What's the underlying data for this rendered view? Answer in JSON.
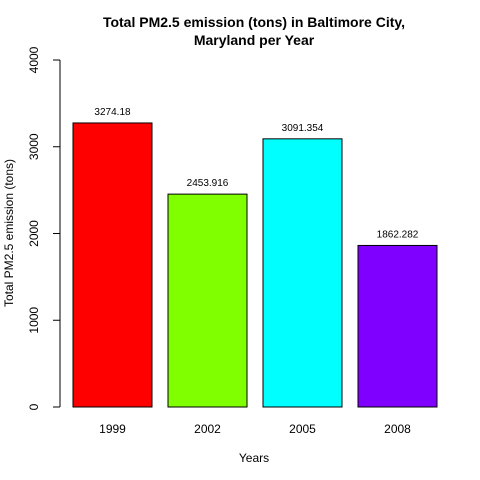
{
  "chart_data": {
    "type": "bar",
    "title_line1": "Total PM2.5 emission (tons) in Baltimore City,",
    "title_line2": "Maryland per Year",
    "xlabel": "Years",
    "ylabel": "Total PM2.5 emission (tons)",
    "categories": [
      "1999",
      "2002",
      "2005",
      "2008"
    ],
    "values": [
      3274.18,
      2453.916,
      3091.354,
      1862.282
    ],
    "value_labels": [
      "3274.18",
      "2453.916",
      "3091.354",
      "1862.282"
    ],
    "colors": [
      "#FF0000",
      "#80FF00",
      "#00FFFF",
      "#8000FF"
    ],
    "ylim": [
      0,
      4000
    ],
    "yticks": [
      0,
      1000,
      2000,
      3000,
      4000
    ],
    "ytick_labels": [
      "0",
      "1000",
      "2000",
      "3000",
      "4000"
    ],
    "grid": false,
    "legend": false
  }
}
